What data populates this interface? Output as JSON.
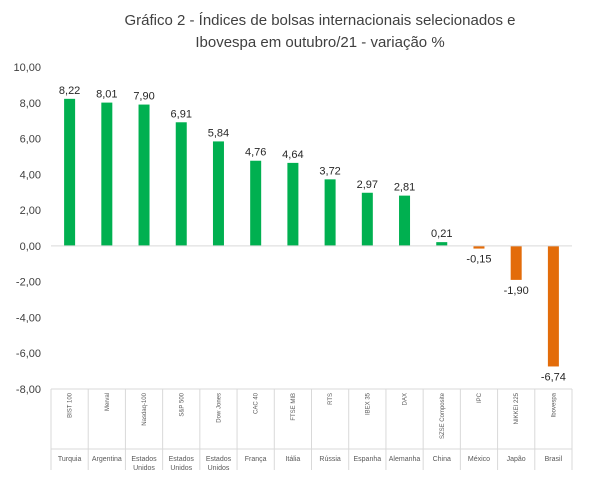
{
  "chart_data": {
    "type": "bar",
    "title": "Gráfico 2 - Índices de bolsas internacionais selecionados e Ibovespa em outubro/21 - variação %",
    "categories": [
      {
        "index": "BIST 100",
        "country": [
          "Turquia"
        ]
      },
      {
        "index": "Merval",
        "country": [
          "Argentina"
        ]
      },
      {
        "index": "Nasdaq-100",
        "country": [
          "Estados",
          "Unidos"
        ]
      },
      {
        "index": "S&P 500",
        "country": [
          "Estados",
          "Unidos"
        ]
      },
      {
        "index": "Dow Jones",
        "country": [
          "Estados",
          "Unidos"
        ]
      },
      {
        "index": "CAC 40",
        "country": [
          "França"
        ]
      },
      {
        "index": "FTSE MIB",
        "country": [
          "Itália"
        ]
      },
      {
        "index": "RTS",
        "country": [
          "Rússia"
        ]
      },
      {
        "index": "IBEX 35",
        "country": [
          "Espanha"
        ]
      },
      {
        "index": "DAX",
        "country": [
          "Alemanha"
        ]
      },
      {
        "index": "SZSE Composite",
        "country": [
          "China"
        ]
      },
      {
        "index": "IPC",
        "country": [
          "México"
        ]
      },
      {
        "index": "NIKKEI 225",
        "country": [
          "Japão"
        ]
      },
      {
        "index": "Ibovespa",
        "country": [
          "Brasil"
        ]
      }
    ],
    "values": [
      8.22,
      8.01,
      7.9,
      6.91,
      5.84,
      4.76,
      4.64,
      3.72,
      2.97,
      2.81,
      0.21,
      -0.15,
      -1.9,
      -6.74
    ],
    "value_labels": [
      "8,22",
      "8,01",
      "7,90",
      "6,91",
      "5,84",
      "4,76",
      "4,64",
      "3,72",
      "2,97",
      "2,81",
      "0,21",
      "-0,15",
      "-1,90",
      "-6,74"
    ],
    "yticks": [
      "10,00",
      "8,00",
      "6,00",
      "4,00",
      "2,00",
      "0,00",
      "-2,00",
      "-4,00",
      "-6,00",
      "-8,00"
    ],
    "ylim": [
      -8,
      10
    ],
    "grid": false,
    "colors": {
      "positive": "#00b050",
      "negative": "#e36c0a",
      "axis": "#d9d9d9"
    }
  }
}
